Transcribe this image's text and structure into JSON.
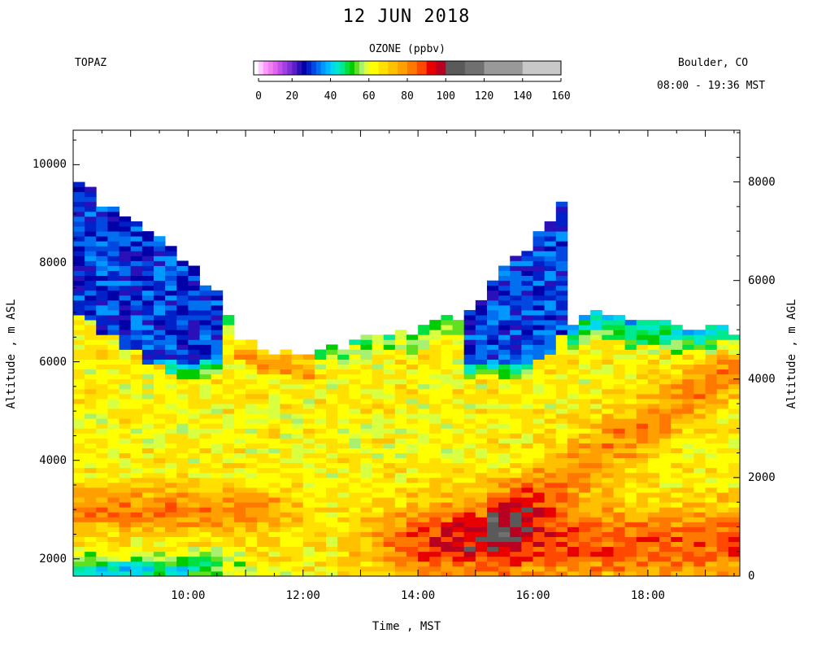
{
  "header": {
    "title": "12 JUN 2018",
    "instrument": "TOPAZ",
    "location": "Boulder, CO",
    "time_range": "08:00 - 19:36 MST"
  },
  "colorbar": {
    "title": "OZONE (ppbv)",
    "tick_labels": [
      "0",
      "20",
      "40",
      "60",
      "80",
      "100",
      "120",
      "140",
      "160"
    ],
    "range": [
      0,
      160
    ],
    "bins": [
      {
        "from": 0,
        "to": 2.5,
        "color": "#ffffff"
      },
      {
        "from": 2.5,
        "to": 5,
        "color": "#ffccff"
      },
      {
        "from": 5,
        "to": 7.5,
        "color": "#ff99ff"
      },
      {
        "from": 7.5,
        "to": 10,
        "color": "#f080f0"
      },
      {
        "from": 10,
        "to": 12.5,
        "color": "#e066f0"
      },
      {
        "from": 12.5,
        "to": 15,
        "color": "#c050e8"
      },
      {
        "from": 15,
        "to": 17.5,
        "color": "#a040e0"
      },
      {
        "from": 17.5,
        "to": 20,
        "color": "#8030d8"
      },
      {
        "from": 20,
        "to": 22.5,
        "color": "#5a20c8"
      },
      {
        "from": 22.5,
        "to": 25,
        "color": "#2a10b8"
      },
      {
        "from": 25,
        "to": 27.5,
        "color": "#0000a8"
      },
      {
        "from": 27.5,
        "to": 30,
        "color": "#0020c8"
      },
      {
        "from": 30,
        "to": 32.5,
        "color": "#0048e0"
      },
      {
        "from": 32.5,
        "to": 35,
        "color": "#0070f0"
      },
      {
        "from": 35,
        "to": 37.5,
        "color": "#0098ff"
      },
      {
        "from": 37.5,
        "to": 40,
        "color": "#00b8ff"
      },
      {
        "from": 40,
        "to": 42.5,
        "color": "#00d8f0"
      },
      {
        "from": 42.5,
        "to": 45,
        "color": "#00e8c8"
      },
      {
        "from": 45,
        "to": 47.5,
        "color": "#00e890"
      },
      {
        "from": 47.5,
        "to": 50,
        "color": "#00e040"
      },
      {
        "from": 50,
        "to": 52.5,
        "color": "#00cc00"
      },
      {
        "from": 52.5,
        "to": 55,
        "color": "#60e020"
      },
      {
        "from": 55,
        "to": 57.5,
        "color": "#a8f070"
      },
      {
        "from": 57.5,
        "to": 60,
        "color": "#d8ff40"
      },
      {
        "from": 60,
        "to": 65,
        "color": "#ffff00"
      },
      {
        "from": 65,
        "to": 70,
        "color": "#ffe000"
      },
      {
        "from": 70,
        "to": 75,
        "color": "#ffc000"
      },
      {
        "from": 75,
        "to": 80,
        "color": "#ffa000"
      },
      {
        "from": 80,
        "to": 85,
        "color": "#ff7800"
      },
      {
        "from": 85,
        "to": 90,
        "color": "#ff4800"
      },
      {
        "from": 90,
        "to": 95,
        "color": "#e80000"
      },
      {
        "from": 95,
        "to": 100,
        "color": "#b80020"
      },
      {
        "from": 100,
        "to": 110,
        "color": "#5a5a5a"
      },
      {
        "from": 110,
        "to": 120,
        "color": "#707070"
      },
      {
        "from": 120,
        "to": 140,
        "color": "#999999"
      },
      {
        "from": 140,
        "to": 160,
        "color": "#c8c8c8"
      }
    ]
  },
  "chart_data": {
    "type": "heatmap",
    "title": "12 JUN 2018",
    "xlabel": "Time , MST",
    "ylabel": "Altitude , m ASL",
    "ylabel_right": "Altitude , m AGL",
    "x_tick_labels": [
      "10:00",
      "12:00",
      "14:00",
      "16:00",
      "18:00"
    ],
    "x_ticks_hours": [
      10,
      12,
      14,
      16,
      18
    ],
    "x_range_hours": [
      8.0,
      19.6
    ],
    "y_tick_labels": [
      "2000",
      "4000",
      "6000",
      "8000",
      "10000"
    ],
    "y_ticks": [
      2000,
      4000,
      6000,
      8000,
      10000
    ],
    "y_range": [
      1650,
      10700
    ],
    "y2_tick_labels": [
      "0",
      "2000",
      "4000",
      "6000",
      "8000"
    ],
    "y2_ticks": [
      0,
      2000,
      4000,
      6000,
      8000
    ],
    "y2_offset_m": 1650,
    "z_label": "OZONE (ppbv)",
    "z_range": [
      0,
      160
    ],
    "time_step_hours": 0.2,
    "altitude_step_m": 100,
    "data_top_profile": {
      "hours": [
        8.0,
        8.5,
        9.0,
        9.5,
        10.0,
        10.5,
        10.8,
        11.0,
        11.5,
        12.0,
        12.5,
        13.0,
        13.5,
        14.0,
        14.5,
        15.0,
        15.5,
        16.0,
        16.25,
        16.5,
        16.6,
        17.0,
        17.5,
        18.0,
        18.5,
        19.0,
        19.6
      ],
      "top_m": [
        9600,
        9200,
        8800,
        8500,
        8000,
        7400,
        6600,
        6300,
        6200,
        6100,
        6200,
        6400,
        6500,
        6600,
        6800,
        7100,
        7900,
        8400,
        8800,
        9100,
        6700,
        6900,
        6800,
        6800,
        6700,
        6700,
        6600
      ]
    },
    "ozone_layers_ppbv": [
      {
        "name": "boundary_layer_morning",
        "hours": [
          8.0,
          11.0
        ],
        "altitude_m": [
          1650,
          2100
        ],
        "ppbv": 46
      },
      {
        "name": "boundary_layer_afternoon",
        "hours": [
          13.0,
          19.6
        ],
        "altitude_m": [
          1650,
          2600
        ],
        "ppbv": 88
      },
      {
        "name": "max_ozone_plume",
        "hours": [
          14.3,
          16.2
        ],
        "altitude_m": [
          1900,
          3300
        ],
        "ppbv": 93
      },
      {
        "name": "lofted_layer",
        "hours": [
          8.0,
          10.5
        ],
        "altitude_m": [
          2700,
          3300
        ],
        "ppbv": 82
      },
      {
        "name": "rising_layer",
        "hours": [
          16.0,
          18.5
        ],
        "altitude_m": [
          3500,
          5000
        ],
        "ppbv": 85
      },
      {
        "name": "free_troposphere",
        "hours": [
          8.0,
          19.6
        ],
        "altitude_m": [
          3500,
          5800
        ],
        "ppbv": 64
      },
      {
        "name": "upper_layer_morning",
        "hours": [
          8.0,
          10.5
        ],
        "altitude_m": [
          6000,
          9000
        ],
        "ppbv": 30
      },
      {
        "name": "upper_layer_afternoon",
        "hours": [
          15.0,
          16.5
        ],
        "altitude_m": [
          6800,
          9000
        ],
        "ppbv": 30
      }
    ]
  }
}
